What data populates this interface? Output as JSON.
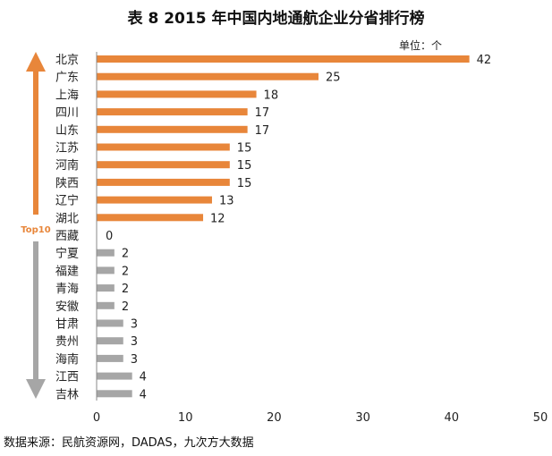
{
  "page": {
    "title": "表 8 2015 年中国内地通航企业分省排行榜",
    "source": "数据来源：民航资源网，DADAS，九次方大数据"
  },
  "chart_data": {
    "type": "bar",
    "orientation": "horizontal",
    "title": "表 8 2015 年中国内地通航企业分省排行榜",
    "unit_label": "单位：个",
    "categories": [
      "北京",
      "广东",
      "上海",
      "四川",
      "山东",
      "江苏",
      "河南",
      "陕西",
      "辽宁",
      "湖北",
      "西藏",
      "宁夏",
      "福建",
      "青海",
      "安徽",
      "甘肃",
      "贵州",
      "海南",
      "江西",
      "吉林"
    ],
    "values": [
      42,
      25,
      18,
      17,
      17,
      15,
      15,
      15,
      13,
      12,
      0,
      2,
      2,
      2,
      2,
      3,
      3,
      3,
      4,
      4
    ],
    "top_count": 10,
    "top_label": "Top10",
    "xlim": [
      0,
      50
    ],
    "xticks": [
      0,
      10,
      20,
      30,
      40,
      50
    ],
    "grid": false,
    "colors": {
      "top": "#e8863a",
      "rest": "#a6a6a6",
      "axis": "#888888"
    }
  }
}
